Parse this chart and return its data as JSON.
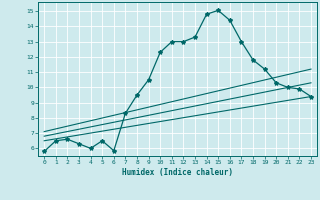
{
  "bg_color": "#ceeaed",
  "grid_color": "#b0d8dc",
  "line_color": "#006868",
  "xlabel": "Humidex (Indice chaleur)",
  "xlim": [
    -0.5,
    23.5
  ],
  "ylim": [
    5.5,
    15.6
  ],
  "xticks": [
    0,
    1,
    2,
    3,
    4,
    5,
    6,
    7,
    8,
    9,
    10,
    11,
    12,
    13,
    14,
    15,
    16,
    17,
    18,
    19,
    20,
    21,
    22,
    23
  ],
  "yticks": [
    6,
    7,
    8,
    9,
    10,
    11,
    12,
    13,
    14,
    15
  ],
  "series1_x": [
    0,
    1,
    2,
    3,
    4,
    5,
    6,
    7,
    8,
    9,
    10,
    11,
    12,
    13,
    14,
    15,
    16,
    17,
    18,
    19,
    20,
    21,
    22,
    23
  ],
  "series1_y": [
    5.8,
    6.5,
    6.6,
    6.3,
    6.0,
    6.5,
    5.85,
    8.3,
    9.5,
    10.5,
    12.3,
    13.0,
    13.0,
    13.3,
    14.8,
    15.05,
    14.4,
    13.0,
    11.8,
    11.2,
    10.3,
    10.0,
    9.9,
    9.4
  ],
  "series2_x": [
    0,
    23
  ],
  "series2_y": [
    6.5,
    9.4
  ],
  "series3_x": [
    0,
    23
  ],
  "series3_y": [
    6.8,
    10.3
  ],
  "series4_x": [
    0,
    23
  ],
  "series4_y": [
    7.1,
    11.2
  ]
}
